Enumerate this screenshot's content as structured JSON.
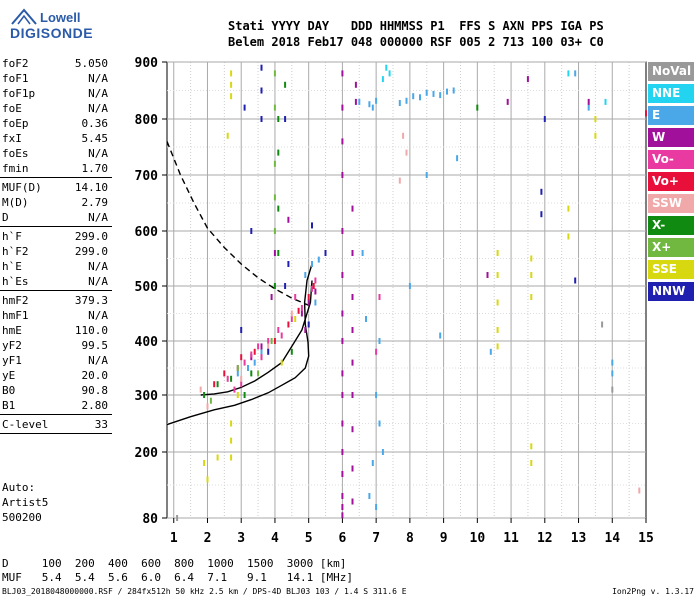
{
  "logo": {
    "line1": "Lowell",
    "line2": "DIGISONDE"
  },
  "header": {
    "line1": "Stati YYYY DAY   DDD HHMMSS P1  FFS S AXN PPS IGA PS",
    "line2": "Belem 2018 Feb17 048 000000 RSF 005 2 713 100 03+ C0"
  },
  "params": [
    {
      "k": "foF2",
      "v": "5.050"
    },
    {
      "k": "foF1",
      "v": "N/A"
    },
    {
      "k": "foF1p",
      "v": "N/A"
    },
    {
      "k": "foE",
      "v": "N/A"
    },
    {
      "k": "foEp",
      "v": "0.36"
    },
    {
      "k": "fxI",
      "v": "5.45"
    },
    {
      "k": "foEs",
      "v": "N/A"
    },
    {
      "k": "fmin",
      "v": "1.70"
    },
    {
      "k": "MUF(D)",
      "v": "14.10"
    },
    {
      "k": "M(D)",
      "v": "2.79"
    },
    {
      "k": "D",
      "v": "N/A"
    },
    {
      "k": "h`F",
      "v": "299.0"
    },
    {
      "k": "h`F2",
      "v": "299.0"
    },
    {
      "k": "h`E",
      "v": "N/A"
    },
    {
      "k": "h`Es",
      "v": "N/A"
    },
    {
      "k": "hmF2",
      "v": "379.3"
    },
    {
      "k": "hmF1",
      "v": "N/A"
    },
    {
      "k": "hmE",
      "v": "110.0"
    },
    {
      "k": "yF2",
      "v": "99.5"
    },
    {
      "k": "yF1",
      "v": "N/A"
    },
    {
      "k": "yE",
      "v": "20.0"
    },
    {
      "k": "B0",
      "v": "90.8"
    },
    {
      "k": "B1",
      "v": "2.80"
    },
    {
      "k": "C-level",
      "v": "33"
    }
  ],
  "note": {
    "l1": "Auto:",
    "l2": "Artist5",
    "l3": "500200"
  },
  "legend": [
    {
      "label": "NoVal",
      "color": "#999999"
    },
    {
      "label": "NNE",
      "color": "#22d4f0"
    },
    {
      "label": "E",
      "color": "#4aa8e8"
    },
    {
      "label": "W",
      "color": "#a0109a"
    },
    {
      "label": "Vo-",
      "color": "#e83aa0"
    },
    {
      "label": "Vo+",
      "color": "#e8103a"
    },
    {
      "label": "SSW",
      "color": "#f0a8a8"
    },
    {
      "label": "X-",
      "color": "#108a10"
    },
    {
      "label": "X+",
      "color": "#70b840"
    },
    {
      "label": "SSE",
      "color": "#d8d810"
    },
    {
      "label": "NNW",
      "color": "#2020b0"
    }
  ],
  "footer": {
    "d_row": "D     100  200  400  600  800  1000  1500  3000 [km]",
    "muf_row": "MUF   5.4  5.4  5.6  6.0  6.4  7.1   9.1   14.1 [MHz]",
    "file": "BLJ03_2018048000000.RSF / 284fx512h 50 kHz 2.5 km / DPS-4D BLJ03 103 / 1.4 S 311.6 E",
    "version": "Ion2Png v. 1.3.17"
  },
  "chart_data": {
    "type": "scatter",
    "title": "",
    "xlabel": "",
    "ylabel": "",
    "xlim": [
      0.8,
      15
    ],
    "ylim": [
      80,
      900
    ],
    "x_ticks": [
      1,
      2,
      3,
      4,
      5,
      6,
      7,
      8,
      9,
      10,
      11,
      12,
      13,
      14,
      15
    ],
    "y_ticks": [
      80,
      200,
      300,
      400,
      500,
      600,
      700,
      800,
      900
    ],
    "y_scale": "nonlinear",
    "grid": true,
    "series": [
      {
        "name": "E",
        "color": "#4aa8e8",
        "points": [
          [
            7.7,
            828
          ],
          [
            7.9,
            832
          ],
          [
            8.1,
            840
          ],
          [
            8.3,
            838
          ],
          [
            8.5,
            846
          ],
          [
            8.7,
            844
          ],
          [
            8.9,
            842
          ],
          [
            9.1,
            848
          ],
          [
            9.3,
            850
          ],
          [
            7.0,
            832
          ],
          [
            6.9,
            820
          ],
          [
            6.5,
            830
          ],
          [
            6.8,
            826
          ],
          [
            4.9,
            520
          ],
          [
            5.1,
            540
          ],
          [
            5.3,
            548
          ],
          [
            5.2,
            470
          ],
          [
            3.4,
            360
          ],
          [
            3.6,
            380
          ],
          [
            3.2,
            350
          ],
          [
            2.9,
            340
          ],
          [
            7.1,
            400
          ],
          [
            7.0,
            300
          ],
          [
            7.1,
            250
          ],
          [
            7.2,
            200
          ],
          [
            6.9,
            180
          ],
          [
            6.8,
            120
          ],
          [
            7.0,
            100
          ],
          [
            6.7,
            440
          ],
          [
            8.5,
            700
          ],
          [
            9.4,
            730
          ],
          [
            10.4,
            380
          ],
          [
            12.9,
            880
          ],
          [
            13.3,
            820
          ],
          [
            14.0,
            360
          ],
          [
            14.0,
            340
          ],
          [
            8.0,
            500
          ],
          [
            6.6,
            560
          ],
          [
            8.9,
            410
          ]
        ]
      },
      {
        "name": "W",
        "color": "#a0109a",
        "points": [
          [
            6.0,
            880
          ],
          [
            6.0,
            820
          ],
          [
            6.0,
            760
          ],
          [
            6.0,
            700
          ],
          [
            6.0,
            600
          ],
          [
            6.0,
            520
          ],
          [
            6.0,
            450
          ],
          [
            6.0,
            400
          ],
          [
            6.0,
            340
          ],
          [
            6.0,
            300
          ],
          [
            6.0,
            250
          ],
          [
            6.0,
            200
          ],
          [
            6.0,
            160
          ],
          [
            6.0,
            120
          ],
          [
            6.0,
            100
          ],
          [
            6.0,
            85
          ],
          [
            6.3,
            640
          ],
          [
            6.3,
            560
          ],
          [
            6.3,
            480
          ],
          [
            6.3,
            420
          ],
          [
            6.3,
            360
          ],
          [
            6.3,
            300
          ],
          [
            6.3,
            240
          ],
          [
            6.3,
            170
          ],
          [
            6.3,
            110
          ],
          [
            6.4,
            860
          ],
          [
            6.4,
            830
          ],
          [
            4.8,
            450
          ],
          [
            5.0,
            470
          ],
          [
            5.2,
            490
          ],
          [
            4.9,
            420
          ],
          [
            3.3,
            370
          ],
          [
            3.6,
            390
          ],
          [
            3.9,
            480
          ],
          [
            4.0,
            560
          ],
          [
            4.4,
            620
          ],
          [
            11.5,
            870
          ],
          [
            10.9,
            830
          ],
          [
            13.3,
            830
          ],
          [
            10.3,
            520
          ]
        ]
      },
      {
        "name": "Vo-",
        "color": "#e83aa0",
        "points": [
          [
            2.6,
            330
          ],
          [
            2.9,
            350
          ],
          [
            3.1,
            360
          ],
          [
            3.3,
            375
          ],
          [
            3.5,
            390
          ],
          [
            3.8,
            400
          ],
          [
            4.1,
            420
          ],
          [
            4.5,
            440
          ],
          [
            4.8,
            460
          ],
          [
            5.1,
            495
          ],
          [
            5.2,
            510
          ],
          [
            4.2,
            410
          ],
          [
            3.0,
            320
          ],
          [
            2.8,
            310
          ],
          [
            3.6,
            370
          ],
          [
            4.6,
            480
          ],
          [
            7.1,
            480
          ],
          [
            7.0,
            380
          ]
        ]
      },
      {
        "name": "Vo+",
        "color": "#e8103a",
        "points": [
          [
            2.2,
            320
          ],
          [
            2.5,
            340
          ],
          [
            3.0,
            370
          ],
          [
            3.4,
            380
          ],
          [
            4.0,
            400
          ],
          [
            4.4,
            430
          ],
          [
            4.7,
            455
          ],
          [
            5.0,
            480
          ],
          [
            5.15,
            500
          ],
          [
            15.0,
            810
          ]
        ]
      },
      {
        "name": "SSW",
        "color": "#f0a8a8",
        "points": [
          [
            7.8,
            770
          ],
          [
            7.9,
            740
          ],
          [
            7.7,
            690
          ],
          [
            4.5,
            450
          ],
          [
            3.8,
            390
          ],
          [
            3.0,
            330
          ],
          [
            1.8,
            310
          ],
          [
            2.0,
            280
          ],
          [
            14.8,
            130
          ]
        ]
      },
      {
        "name": "X-",
        "color": "#108a10",
        "points": [
          [
            4.1,
            800
          ],
          [
            4.1,
            740
          ],
          [
            4.1,
            640
          ],
          [
            4.1,
            560
          ],
          [
            4.0,
            500
          ],
          [
            3.3,
            340
          ],
          [
            2.7,
            330
          ],
          [
            3.1,
            300
          ],
          [
            2.3,
            320
          ],
          [
            4.5,
            380
          ],
          [
            1.9,
            300
          ],
          [
            4.3,
            860
          ],
          [
            10.0,
            820
          ]
        ]
      },
      {
        "name": "X+",
        "color": "#70b840",
        "points": [
          [
            4.0,
            880
          ],
          [
            4.0,
            820
          ],
          [
            4.0,
            720
          ],
          [
            4.0,
            660
          ],
          [
            4.0,
            600
          ],
          [
            2.9,
            350
          ],
          [
            3.9,
            400
          ],
          [
            2.1,
            290
          ],
          [
            3.5,
            340
          ]
        ]
      },
      {
        "name": "SSE",
        "color": "#d8d810",
        "points": [
          [
            2.7,
            880
          ],
          [
            2.7,
            860
          ],
          [
            2.7,
            840
          ],
          [
            2.6,
            770
          ],
          [
            2.7,
            250
          ],
          [
            2.7,
            220
          ],
          [
            2.7,
            190
          ],
          [
            10.6,
            560
          ],
          [
            10.6,
            520
          ],
          [
            10.6,
            470
          ],
          [
            10.6,
            420
          ],
          [
            10.6,
            390
          ],
          [
            11.6,
            550
          ],
          [
            11.6,
            520
          ],
          [
            11.6,
            480
          ],
          [
            11.6,
            210
          ],
          [
            11.6,
            180
          ],
          [
            12.7,
            640
          ],
          [
            12.7,
            590
          ],
          [
            13.5,
            800
          ],
          [
            13.5,
            770
          ],
          [
            2.0,
            150
          ],
          [
            1.9,
            180
          ],
          [
            2.3,
            190
          ],
          [
            2.9,
            300
          ],
          [
            4.2,
            360
          ],
          [
            4.6,
            440
          ]
        ]
      },
      {
        "name": "NNE",
        "color": "#22d4f0",
        "points": [
          [
            7.3,
            890
          ],
          [
            7.4,
            880
          ],
          [
            7.2,
            870
          ],
          [
            12.7,
            880
          ],
          [
            13.8,
            830
          ]
        ]
      },
      {
        "name": "NNW",
        "color": "#2020b0",
        "points": [
          [
            3.6,
            890
          ],
          [
            3.6,
            850
          ],
          [
            3.6,
            800
          ],
          [
            4.3,
            800
          ],
          [
            3.1,
            820
          ],
          [
            3.3,
            600
          ],
          [
            5.1,
            610
          ],
          [
            5.5,
            560
          ],
          [
            4.4,
            540
          ],
          [
            4.3,
            500
          ],
          [
            3.0,
            420
          ],
          [
            3.8,
            380
          ],
          [
            5.0,
            430
          ],
          [
            12.0,
            800
          ],
          [
            11.9,
            670
          ],
          [
            11.9,
            630
          ],
          [
            12.9,
            510
          ]
        ]
      },
      {
        "name": "NoVal",
        "color": "#999999",
        "points": [
          [
            14.0,
            310
          ],
          [
            13.7,
            430
          ],
          [
            1.1,
            80
          ]
        ]
      }
    ],
    "curves": [
      {
        "name": "profile",
        "style": "solid",
        "points": [
          [
            0.8,
            248
          ],
          [
            1.5,
            262
          ],
          [
            2.2,
            274
          ],
          [
            2.8,
            282
          ],
          [
            3.3,
            292
          ],
          [
            3.8,
            304
          ],
          [
            4.2,
            318
          ],
          [
            4.6,
            332
          ],
          [
            4.9,
            350
          ],
          [
            5.0,
            372
          ],
          [
            4.98,
            398
          ],
          [
            4.9,
            430
          ],
          [
            4.88,
            470
          ],
          [
            4.95,
            510
          ],
          [
            5.1,
            540
          ]
        ]
      },
      {
        "name": "trace",
        "style": "solid",
        "points": [
          [
            1.8,
            300
          ],
          [
            2.2,
            302
          ],
          [
            2.6,
            306
          ],
          [
            3.0,
            314
          ],
          [
            3.4,
            326
          ],
          [
            3.8,
            342
          ],
          [
            4.2,
            360
          ],
          [
            4.5,
            390
          ],
          [
            4.8,
            420
          ],
          [
            5.05,
            470
          ],
          [
            5.1,
            510
          ]
        ]
      },
      {
        "name": "muf",
        "style": "dashed",
        "points": [
          [
            0.8,
            760
          ],
          [
            1.2,
            700
          ],
          [
            1.6,
            650
          ],
          [
            2.0,
            605
          ],
          [
            2.5,
            570
          ],
          [
            3.0,
            540
          ],
          [
            3.5,
            515
          ],
          [
            4.0,
            495
          ],
          [
            4.5,
            478
          ],
          [
            5.0,
            465
          ]
        ]
      }
    ]
  }
}
